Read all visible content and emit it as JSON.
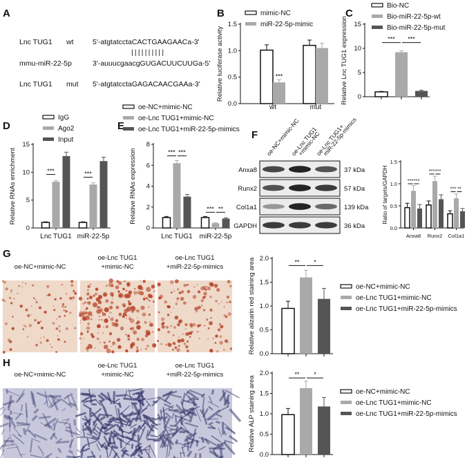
{
  "colors": {
    "white": "#ffffff",
    "light": "#a9a9a9",
    "dark": "#555555",
    "stain_red": "#c4734a",
    "stain_alp": "#8e8fb3"
  },
  "panel_labels": {
    "A": "A",
    "B": "B",
    "C": "C",
    "D": "D",
    "E": "E",
    "F": "F",
    "G": "G",
    "H": "H"
  },
  "panelA": {
    "row1": {
      "name": "Lnc TUG1",
      "tag": "wt",
      "seq": "5'-atgtatcctaCACTGAAGAACa-3'"
    },
    "bars": "||||||||||",
    "row2": {
      "name": "mmu-miR-22-5p",
      "seq": "3'-auuucgaacgGUGACUUCUUGa-5'"
    },
    "row3": {
      "name": "Lnc TUG1",
      "tag": "mut",
      "seq": "5'-atgtatcctaGAGACAACGAAa-3'"
    }
  },
  "chart_data": [
    {
      "id": "B",
      "type": "bar",
      "ylabel": "Relative luciferase activity",
      "ylim": [
        0,
        1.5
      ],
      "yticks": [
        "0.0",
        "0.5",
        "1.0",
        "1.5"
      ],
      "categories": [
        "wt",
        "mut"
      ],
      "series": [
        {
          "name": "mimic-NC",
          "color": "white",
          "values": [
            1.01,
            1.1
          ],
          "err": [
            0.1,
            0.1
          ]
        },
        {
          "name": "miR-22-5p-mimic",
          "color": "light",
          "values": [
            0.4,
            1.05
          ],
          "err": [
            0.05,
            0.09
          ]
        }
      ],
      "sig": [
        {
          "text": "***",
          "cat": 0,
          "series": 1
        }
      ]
    },
    {
      "id": "C",
      "type": "bar",
      "ylabel": "Relative Lnc TUG1 expression",
      "ylim": [
        0,
        15
      ],
      "yticks": [
        "0",
        "5",
        "10",
        "15"
      ],
      "categories": [
        ""
      ],
      "series": [
        {
          "name": "Bio-NC",
          "color": "white",
          "values": [
            1.0
          ],
          "err": [
            0.1
          ]
        },
        {
          "name": "Bio-miR-22-5p-wt",
          "color": "light",
          "values": [
            9.2
          ],
          "err": [
            0.3
          ]
        },
        {
          "name": "Bio-miR-22-5p-mut",
          "color": "dark",
          "values": [
            1.2
          ],
          "err": [
            0.15
          ]
        }
      ],
      "brackets": [
        {
          "text": "***",
          "from": 0,
          "to": 1,
          "y": 11.2
        },
        {
          "text": "***",
          "from": 1,
          "to": 2,
          "y": 11.2
        }
      ]
    },
    {
      "id": "D",
      "type": "bar",
      "ylabel": "Relative RNAs enrichment",
      "ylim": [
        0,
        15
      ],
      "yticks": [
        "0",
        "5",
        "10",
        "15"
      ],
      "categories": [
        "Lnc TUG1",
        "miR-22-5p"
      ],
      "series": [
        {
          "name": "IgG",
          "color": "white",
          "values": [
            1.0,
            1.0
          ],
          "err": [
            0.1,
            0.1
          ]
        },
        {
          "name": "Ago2",
          "color": "light",
          "values": [
            8.3,
            7.8
          ],
          "err": [
            0.2,
            0.3
          ]
        },
        {
          "name": "Input",
          "color": "dark",
          "values": [
            12.9,
            12.0
          ],
          "err": [
            0.7,
            0.7
          ]
        }
      ],
      "brackets": [
        {
          "text": "***",
          "cat": 0,
          "from": 0,
          "to": 1,
          "y": 9.6
        },
        {
          "text": "***",
          "cat": 1,
          "from": 0,
          "to": 1,
          "y": 9.1
        }
      ]
    },
    {
      "id": "E",
      "type": "bar",
      "ylabel": "Relative RNAs expression",
      "ylim": [
        0,
        8
      ],
      "yticks": [
        "0",
        "2",
        "4",
        "6",
        "8"
      ],
      "categories": [
        "Lnc TUG1",
        "miR-22-5p"
      ],
      "series": [
        {
          "name": "oe-NC+mimic-NC",
          "color": "white",
          "values": [
            1.0,
            1.0
          ],
          "err": [
            0.1,
            0.1
          ]
        },
        {
          "name": "oe-Lnc TUG1+mimic-NC",
          "color": "light",
          "values": [
            6.2,
            0.45
          ],
          "err": [
            0.25,
            0.05
          ]
        },
        {
          "name": "oe-Lnc TUG1+miR-22-5p-mimics",
          "color": "dark",
          "values": [
            3.0,
            0.9
          ],
          "err": [
            0.2,
            0.08
          ]
        }
      ],
      "brackets": [
        {
          "text": "***",
          "cat": 0,
          "from": 0,
          "to": 1,
          "y": 6.9
        },
        {
          "text": "***",
          "cat": 0,
          "from": 1,
          "to": 2,
          "y": 6.9
        },
        {
          "text": "***",
          "cat": 1,
          "from": 0,
          "to": 1,
          "y": 1.5
        },
        {
          "text": "**",
          "cat": 1,
          "from": 1,
          "to": 2,
          "y": 1.5
        }
      ]
    },
    {
      "id": "F",
      "type": "bar",
      "ylabel": "Ratio of targets/GAPDH",
      "ylim": [
        0,
        1.5
      ],
      "yticks": [
        "0.0",
        "0.5",
        "1.0",
        "1.5"
      ],
      "categories": [
        "Anxa8",
        "Runx2",
        "Col1a1"
      ],
      "series": [
        {
          "name": "oe-NC+mimic-NC",
          "color": "white",
          "values": [
            0.46,
            0.52,
            0.32
          ],
          "err": [
            0.1,
            0.09,
            0.07
          ]
        },
        {
          "name": "oe-Lnc TUG1+mimic-NC",
          "color": "light",
          "values": [
            0.84,
            1.06,
            0.67
          ],
          "err": [
            0.12,
            0.11,
            0.1
          ]
        },
        {
          "name": "oe-Lnc TUG1+miR-22-5p-mimics",
          "color": "dark",
          "values": [
            0.44,
            0.65,
            0.38
          ],
          "err": [
            0.09,
            0.1,
            0.06
          ]
        }
      ],
      "brackets": [
        {
          "text": "***",
          "cat": 0,
          "from": 0,
          "to": 1,
          "y": 1.0
        },
        {
          "text": "***",
          "cat": 0,
          "from": 1,
          "to": 2,
          "y": 1.0
        },
        {
          "text": "***",
          "cat": 1,
          "from": 0,
          "to": 1,
          "y": 1.22
        },
        {
          "text": "***",
          "cat": 1,
          "from": 1,
          "to": 2,
          "y": 1.22
        },
        {
          "text": "***",
          "cat": 2,
          "from": 0,
          "to": 1,
          "y": 0.82
        },
        {
          "text": "**",
          "cat": 2,
          "from": 1,
          "to": 2,
          "y": 0.82
        }
      ]
    },
    {
      "id": "G",
      "type": "bar",
      "ylabel": "Relative alizarin red staining area",
      "ylim": [
        0,
        2.0
      ],
      "yticks": [
        "0.0",
        "0.5",
        "1.0",
        "1.5",
        "2.0"
      ],
      "categories": [
        ""
      ],
      "series": [
        {
          "name": "oe-NC+mimic-NC",
          "color": "white",
          "values": [
            0.95
          ],
          "err": [
            0.15
          ]
        },
        {
          "name": "oe-Lnc TUG1+mimic-NC",
          "color": "light",
          "values": [
            1.6
          ],
          "err": [
            0.15
          ]
        },
        {
          "name": "oe-Lnc TUG1+miR-22-5p-mimics",
          "color": "dark",
          "values": [
            1.15
          ],
          "err": [
            0.22
          ]
        }
      ],
      "brackets": [
        {
          "text": "**",
          "from": 0,
          "to": 1,
          "y": 1.85
        },
        {
          "text": "*",
          "from": 1,
          "to": 2,
          "y": 1.85
        }
      ]
    },
    {
      "id": "H",
      "type": "bar",
      "ylabel": "Relative ALP staining area",
      "ylim": [
        0,
        2.0
      ],
      "yticks": [
        "0.0",
        "0.5",
        "1.0",
        "1.5",
        "2.0"
      ],
      "categories": [
        ""
      ],
      "series": [
        {
          "name": "oe-NC+mimic-NC",
          "color": "white",
          "values": [
            0.98
          ],
          "err": [
            0.15
          ]
        },
        {
          "name": "oe-Lnc TUG1+mimic-NC",
          "color": "light",
          "values": [
            1.63
          ],
          "err": [
            0.17
          ]
        },
        {
          "name": "oe-Lnc TUG1+miR-22-5p-mimics",
          "color": "dark",
          "values": [
            1.18
          ],
          "err": [
            0.22
          ]
        }
      ],
      "brackets": [
        {
          "text": "**",
          "from": 0,
          "to": 1,
          "y": 1.88
        },
        {
          "text": "*",
          "from": 1,
          "to": 2,
          "y": 1.88
        }
      ]
    }
  ],
  "western": {
    "columns": [
      "oe-NC+mimic-NC",
      "oe-Lnc TUG1\n+mimic-NC",
      "oe-Lnc TUG1+\nmiR-22-5p-mimics"
    ],
    "bands": [
      {
        "name": "Anxa8",
        "kda": "37 kDa",
        "intensity": [
          0.8,
          0.95,
          0.75
        ]
      },
      {
        "name": "Runx2",
        "kda": "57 kDa",
        "intensity": [
          0.75,
          0.95,
          0.85
        ]
      },
      {
        "name": "Col1a1",
        "kda": "139 kDa",
        "intensity": [
          0.45,
          0.95,
          0.65
        ]
      },
      {
        "name": "GAPDH",
        "kda": "36 kDa",
        "intensity": [
          0.85,
          0.85,
          0.85
        ]
      }
    ]
  },
  "stainG": {
    "labels": [
      "oe-NC+mimic-NC",
      "oe-Lnc TUG1\n+mimic-NC",
      "oe-Lnc TUG1\n+miR-22-5p-mimics"
    ],
    "density": [
      0.25,
      0.9,
      0.55
    ]
  },
  "stainH": {
    "labels": [
      "oe-NC+mimic-NC",
      "oe-Lnc TUG1\n+mimic-NC",
      "oe-Lnc TUG1\n+miR-22-5p-mimics"
    ],
    "density": [
      0.35,
      0.85,
      0.6
    ]
  }
}
